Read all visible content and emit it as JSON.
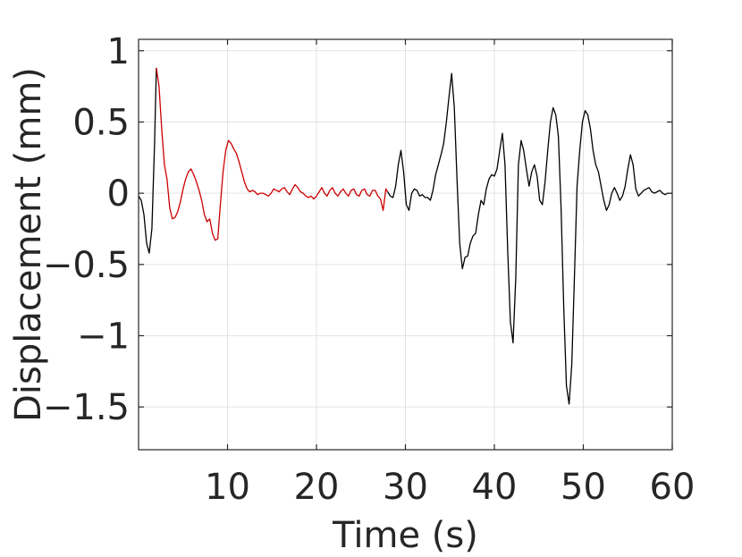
{
  "chart_data": {
    "type": "line",
    "title": "",
    "xlabel": "Time (s)",
    "ylabel": "Displacement (mm)",
    "xlim": [
      0,
      60
    ],
    "ylim": [
      -1.8,
      1.08
    ],
    "xticks": [
      10,
      20,
      30,
      40,
      50,
      60
    ],
    "xtick_labels": [
      "10",
      "20",
      "30",
      "40",
      "50",
      "60"
    ],
    "yticks": [
      1,
      0.5,
      0,
      -0.5,
      -1,
      -1.5
    ],
    "ytick_labels": [
      "1",
      "0.5",
      "0",
      "−0.5",
      "−1",
      "−1.5"
    ],
    "grid": true,
    "series": [
      {
        "color": "#000000",
        "x": [
          0,
          0.3,
          0.6,
          0.9,
          1.2,
          1.5,
          1.8,
          2.0
        ],
        "y": [
          -0.02,
          -0.05,
          -0.15,
          -0.35,
          -0.42,
          -0.25,
          0.35,
          0.88
        ]
      },
      {
        "color": "#cc0000",
        "x": [
          2.0,
          2.3,
          2.6,
          2.9,
          3.2,
          3.5,
          3.8,
          4.1,
          4.4,
          4.7,
          5.0,
          5.3,
          5.6,
          5.9,
          6.2,
          6.5,
          6.8,
          7.1,
          7.4,
          7.7,
          8.0,
          8.3,
          8.6,
          8.9,
          9.2,
          9.5,
          9.8,
          10.1,
          10.4,
          10.7,
          11.0,
          11.3,
          11.6,
          11.9,
          12.2,
          12.5,
          12.8,
          13.1,
          13.4,
          13.7,
          14.0,
          14.3,
          14.6,
          14.9,
          15.2,
          15.5,
          15.8,
          16.1,
          16.4,
          16.7,
          17.0,
          17.3,
          17.6,
          17.9,
          18.2,
          18.5,
          18.8,
          19.1,
          19.4,
          19.7,
          20.0,
          20.3,
          20.6,
          20.9,
          21.2,
          21.5,
          21.8,
          22.1,
          22.4,
          22.7,
          23.0,
          23.3,
          23.6,
          23.9,
          24.2,
          24.5,
          24.8,
          25.1,
          25.4,
          25.7,
          26.0,
          26.3,
          26.6,
          26.9,
          27.2,
          27.5,
          27.8,
          28.0
        ],
        "y": [
          0.88,
          0.75,
          0.45,
          0.2,
          0.1,
          -0.1,
          -0.18,
          -0.17,
          -0.13,
          -0.06,
          0.03,
          0.1,
          0.15,
          0.17,
          0.13,
          0.08,
          0.02,
          -0.05,
          -0.15,
          -0.2,
          -0.18,
          -0.28,
          -0.33,
          -0.32,
          -0.08,
          0.15,
          0.3,
          0.37,
          0.35,
          0.31,
          0.28,
          0.22,
          0.15,
          0.08,
          0.03,
          0.01,
          0.02,
          0.01,
          -0.01,
          0.0,
          0.0,
          -0.01,
          -0.02,
          0.0,
          0.03,
          0.02,
          0.01,
          0.03,
          0.04,
          0.01,
          -0.01,
          0.03,
          0.06,
          0.04,
          0.01,
          0.0,
          -0.02,
          -0.03,
          -0.02,
          -0.04,
          -0.02,
          0.01,
          0.04,
          0.0,
          -0.02,
          0.02,
          0.04,
          0.0,
          -0.02,
          0.01,
          0.03,
          0.0,
          -0.02,
          0.02,
          0.03,
          -0.01,
          -0.02,
          0.02,
          0.03,
          -0.01,
          -0.02,
          0.02,
          0.02,
          -0.02,
          -0.04,
          -0.12,
          0.03,
          0.01
        ]
      },
      {
        "color": "#000000",
        "x": [
          28.0,
          28.3,
          28.6,
          28.9,
          29.2,
          29.5,
          29.8,
          30.1,
          30.4,
          30.7,
          31.0,
          31.3,
          31.6,
          31.9,
          32.2,
          32.5,
          32.8,
          33.1,
          33.4,
          33.7,
          34.0,
          34.3,
          34.6,
          34.9,
          35.2,
          35.5,
          35.8,
          36.1,
          36.4,
          36.7,
          37.0,
          37.3,
          37.6,
          37.9,
          38.2,
          38.5,
          38.8,
          39.1,
          39.4,
          39.7,
          40.0,
          40.3,
          40.6,
          40.9,
          41.2,
          41.5,
          41.8,
          42.1,
          42.4,
          42.7,
          43.0,
          43.3,
          43.6,
          43.9,
          44.2,
          44.5,
          44.8,
          45.1,
          45.4,
          45.7,
          46.0,
          46.3,
          46.6,
          46.9,
          47.2,
          47.5,
          47.8,
          48.1,
          48.4,
          48.7,
          49.0,
          49.3,
          49.6,
          49.9,
          50.2,
          50.5,
          50.8,
          51.1,
          51.4,
          51.7,
          52.0,
          52.3,
          52.6,
          52.9,
          53.2,
          53.5,
          53.8,
          54.1,
          54.4,
          54.7,
          55.0,
          55.3,
          55.6,
          55.9,
          56.2,
          56.5,
          56.8,
          57.1,
          57.4,
          57.7,
          58.0,
          58.3,
          58.6,
          58.9,
          59.2,
          59.5,
          59.8,
          60.0
        ],
        "y": [
          0.01,
          -0.02,
          -0.03,
          0.05,
          0.2,
          0.3,
          0.15,
          -0.08,
          -0.12,
          0.0,
          0.03,
          0.02,
          -0.02,
          -0.01,
          -0.03,
          -0.03,
          -0.05,
          0.02,
          0.13,
          0.2,
          0.27,
          0.35,
          0.5,
          0.68,
          0.84,
          0.6,
          0.1,
          -0.35,
          -0.53,
          -0.45,
          -0.44,
          -0.35,
          -0.3,
          -0.28,
          -0.15,
          -0.05,
          -0.08,
          0.03,
          0.1,
          0.13,
          0.12,
          0.17,
          0.3,
          0.42,
          0.2,
          -0.4,
          -0.9,
          -1.05,
          -0.6,
          0.2,
          0.37,
          0.3,
          0.17,
          0.05,
          0.15,
          0.2,
          0.12,
          -0.05,
          -0.08,
          0.08,
          0.3,
          0.5,
          0.6,
          0.55,
          0.4,
          -0.1,
          -0.8,
          -1.35,
          -1.48,
          -1.2,
          -0.6,
          0.05,
          0.3,
          0.5,
          0.58,
          0.55,
          0.45,
          0.3,
          0.2,
          0.15,
          0.05,
          -0.05,
          -0.12,
          -0.08,
          0.0,
          0.04,
          0.0,
          -0.05,
          -0.02,
          0.05,
          0.17,
          0.27,
          0.2,
          0.03,
          -0.02,
          0.0,
          0.02,
          0.03,
          0.04,
          0.01,
          0.0,
          0.01,
          0.02,
          0.0,
          -0.01,
          0.0,
          0.0,
          0.0
        ]
      }
    ]
  }
}
